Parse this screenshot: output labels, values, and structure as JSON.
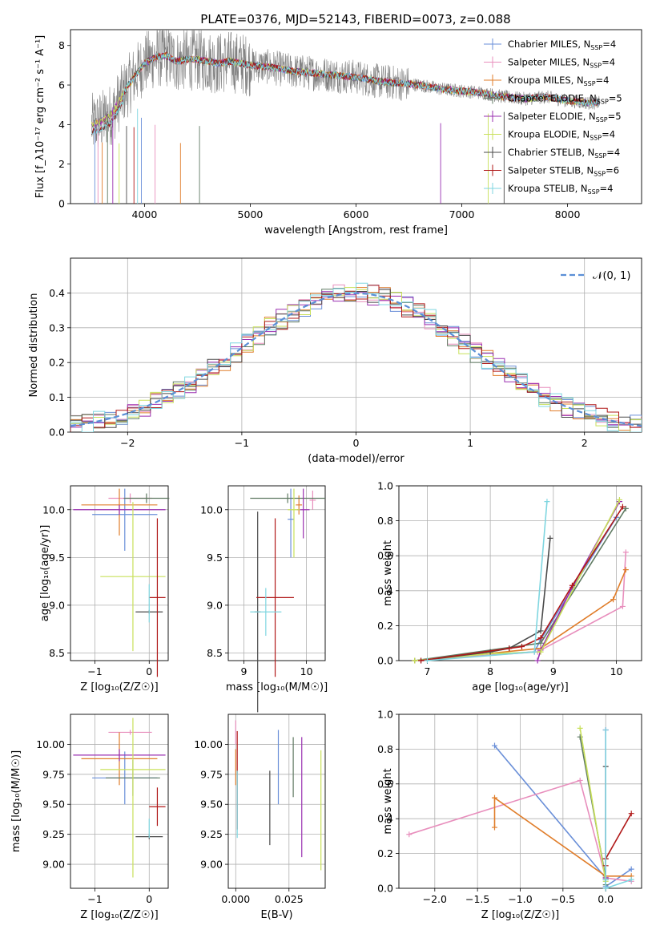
{
  "colors": {
    "Chabrier MILES": "#6a8fd8",
    "Salpeter MILES": "#e88fbd",
    "Kroupa MILES": "#e07d2a",
    "Chabrier ELODIE": "#5f7a62",
    "Salpeter ELODIE": "#9a2fb0",
    "Kroupa ELODIE": "#c8e05a",
    "Chabrier STELIB": "#4a4a4a",
    "Salpeter STELIB": "#b01818",
    "Kroupa STELIB": "#7fd6e0",
    "observed": "#808080",
    "gaussian": "#5b8fd6"
  },
  "chart_data": [
    {
      "id": "spectrum",
      "type": "line",
      "title": "PLATE=0376, MJD=52143, FIBERID=0073, z=0.088",
      "xlabel": "wavelength [Angstrom, rest frame]",
      "ylabel": "Flux [f_λ10⁻¹⁷ erg cm⁻² s⁻¹ A⁻¹]",
      "xlim": [
        3300,
        8700
      ],
      "ylim": [
        0,
        8.8
      ],
      "xticks": [
        4000,
        5000,
        6000,
        7000,
        8000
      ],
      "yticks": [
        0,
        2,
        4,
        6,
        8
      ],
      "legend_position": "top-right",
      "legend": [
        {
          "model": "Chabrier MILES",
          "nssp": "4"
        },
        {
          "model": "Salpeter MILES",
          "nssp": "4"
        },
        {
          "model": "Kroupa MILES",
          "nssp": "4"
        },
        {
          "model": "Chabrier ELODIE",
          "nssp": "5"
        },
        {
          "model": "Salpeter ELODIE",
          "nssp": "5"
        },
        {
          "model": "Kroupa ELODIE",
          "nssp": "4"
        },
        {
          "model": "Chabrier STELIB",
          "nssp": "4"
        },
        {
          "model": "Salpeter STELIB",
          "nssp": "6"
        },
        {
          "model": "Kroupa STELIB",
          "nssp": "4"
        }
      ],
      "model_continuum": {
        "x": [
          3500,
          3550,
          3600,
          3700,
          3800,
          3900,
          4000,
          4100,
          4200,
          4300,
          4400,
          4500,
          4600,
          4700,
          4800,
          4900,
          5000,
          5200,
          5400,
          5600,
          5800,
          6000,
          6200,
          6400,
          6600,
          6800,
          7000,
          7200,
          7400,
          7600,
          7800,
          8000,
          8200,
          8300
        ],
        "y": [
          4.0,
          4.1,
          4.2,
          4.6,
          5.6,
          6.4,
          7.1,
          7.4,
          7.5,
          7.2,
          7.3,
          7.3,
          7.2,
          7.1,
          7.2,
          7.1,
          7.0,
          6.9,
          6.7,
          6.6,
          6.5,
          6.4,
          6.2,
          6.1,
          6.0,
          5.8,
          5.7,
          5.6,
          5.4,
          5.3,
          5.4,
          5.2,
          5.1,
          5.1
        ]
      }
    },
    {
      "id": "residuals",
      "type": "histogram",
      "xlabel": "(data-model)/error",
      "ylabel": "Normed distribution",
      "xlim": [
        -2.5,
        2.5
      ],
      "ylim": [
        0,
        0.5
      ],
      "xticks": [
        -2,
        -1,
        0,
        1,
        2
      ],
      "yticks": [
        0.0,
        0.1,
        0.2,
        0.3,
        0.4
      ],
      "grid": true,
      "legend_position": "top-right",
      "gaussian_label": "𝒩(0, 1)",
      "bin_width": 0.1
    },
    {
      "id": "age-vs-Z",
      "type": "errorbar",
      "xlabel": "Z [log₁₀(Z/Z☉)]",
      "ylabel": "age  [log₁₀(age/yr)]",
      "xlim": [
        -1.45,
        0.35
      ],
      "ylim": [
        8.42,
        10.25
      ],
      "xticks": [
        -1,
        0
      ],
      "yticks": [
        8.5,
        9.0,
        9.5,
        10.0
      ],
      "grid": true,
      "points": [
        {
          "model": "Chabrier MILES",
          "x": -0.45,
          "xerr": 0.6,
          "y": 9.95,
          "yerr": 0.38
        },
        {
          "model": "Salpeter MILES",
          "x": -0.35,
          "xerr": 0.4,
          "y": 10.12,
          "yerr": 0.05
        },
        {
          "model": "Kroupa MILES",
          "x": -0.55,
          "xerr": 0.7,
          "y": 10.05,
          "yerr": 0.32
        },
        {
          "model": "Chabrier ELODIE",
          "x": -0.05,
          "xerr": 0.42,
          "y": 10.12,
          "yerr": 0.05
        },
        {
          "model": "Salpeter ELODIE",
          "x": -0.55,
          "xerr": 0.85,
          "y": 10.0,
          "yerr": 0.05
        },
        {
          "model": "Kroupa ELODIE",
          "x": -0.3,
          "xerr": 0.6,
          "y": 9.3,
          "yerr": 0.78
        },
        {
          "model": "Chabrier STELIB",
          "x": 0.0,
          "xerr": 0.25,
          "y": 8.93,
          "yerr": 0.02
        },
        {
          "model": "Salpeter STELIB",
          "x": 0.15,
          "xerr": 0.15,
          "y": 9.08,
          "yerr": 0.83
        },
        {
          "model": "Kroupa STELIB",
          "x": 0.0,
          "xerr": 0.0,
          "y": 9.02,
          "yerr": 0.2
        }
      ]
    },
    {
      "id": "age-vs-mass",
      "type": "errorbar",
      "xlabel": "mass [log₁₀(M/M☉)]",
      "ylabel": "",
      "xlim": [
        8.75,
        10.3
      ],
      "ylim": [
        8.42,
        10.25
      ],
      "xticks": [
        9,
        10
      ],
      "yticks": [
        8.5,
        9.0,
        9.5,
        10.0
      ],
      "grid": true,
      "points": [
        {
          "model": "Chabrier MILES",
          "x": 9.75,
          "xerr": 0.05,
          "y": 9.9,
          "yerr": 0.4
        },
        {
          "model": "Salpeter MILES",
          "x": 10.1,
          "xerr": 0.05,
          "y": 10.1,
          "yerr": 0.1
        },
        {
          "model": "Kroupa MILES",
          "x": 9.88,
          "xerr": 0.05,
          "y": 10.05,
          "yerr": 0.1
        },
        {
          "model": "Chabrier ELODIE",
          "x": 9.7,
          "xerr": 0.6,
          "y": 10.12,
          "yerr": 0.05
        },
        {
          "model": "Salpeter ELODIE",
          "x": 9.95,
          "xerr": 0.1,
          "y": 10.0,
          "yerr": 0.3
        },
        {
          "model": "Kroupa ELODIE",
          "x": 9.8,
          "xerr": 0.1,
          "y": 10.0,
          "yerr": 0.5
        },
        {
          "model": "Chabrier STELIB",
          "x": 9.22,
          "xerr": 0.05,
          "y": 8.93,
          "yerr": 1.05
        },
        {
          "model": "Salpeter STELIB",
          "x": 9.5,
          "xerr": 0.3,
          "y": 9.08,
          "yerr": 0.83
        },
        {
          "model": "Kroupa STELIB",
          "x": 9.35,
          "xerr": 0.25,
          "y": 8.93,
          "yerr": 0.25
        }
      ]
    },
    {
      "id": "weight-vs-age",
      "type": "line",
      "xlabel": "age  [log₁₀(age/yr)]",
      "ylabel": "mass weight",
      "xlim": [
        6.55,
        10.4
      ],
      "ylim": [
        0,
        1.0
      ],
      "xticks": [
        7,
        8,
        9,
        10
      ],
      "yticks": [
        0.0,
        0.2,
        0.4,
        0.6,
        0.8,
        1.0
      ],
      "grid": true,
      "series": [
        {
          "model": "Chabrier MILES",
          "x": [
            6.8,
            8.7,
            8.8,
            10.0
          ],
          "y": [
            0.0,
            0.05,
            0.12,
            0.82
          ]
        },
        {
          "model": "Salpeter MILES",
          "x": [
            6.8,
            8.75,
            10.1,
            10.15
          ],
          "y": [
            0.0,
            0.05,
            0.31,
            0.62
          ]
        },
        {
          "model": "Kroupa MILES",
          "x": [
            6.8,
            8.8,
            9.95,
            10.15
          ],
          "y": [
            0.0,
            0.07,
            0.35,
            0.52
          ]
        },
        {
          "model": "Chabrier ELODIE",
          "x": [
            6.8,
            8.8,
            10.15
          ],
          "y": [
            0.0,
            0.1,
            0.87
          ]
        },
        {
          "model": "Salpeter ELODIE",
          "x": [
            8.75,
            8.8,
            9.3,
            10.05
          ],
          "y": [
            0.0,
            0.06,
            0.42,
            0.91
          ]
        },
        {
          "model": "Kroupa ELODIE",
          "x": [
            6.8,
            8.0,
            8.8,
            10.05
          ],
          "y": [
            0.0,
            0.04,
            0.05,
            0.92
          ]
        },
        {
          "model": "Chabrier STELIB",
          "x": [
            6.9,
            8.0,
            8.3,
            8.8,
            8.95
          ],
          "y": [
            0.0,
            0.05,
            0.07,
            0.17,
            0.7
          ]
        },
        {
          "model": "Salpeter STELIB",
          "x": [
            6.9,
            8.3,
            8.5,
            8.8,
            9.3,
            10.1
          ],
          "y": [
            0.0,
            0.07,
            0.08,
            0.13,
            0.43,
            0.88
          ]
        },
        {
          "model": "Kroupa STELIB",
          "x": [
            7.0,
            8.7,
            8.9
          ],
          "y": [
            0.0,
            0.05,
            0.91
          ]
        }
      ]
    },
    {
      "id": "mass-vs-Z",
      "type": "errorbar",
      "xlabel": "Z [log₁₀(Z/Z☉)]",
      "ylabel": "mass [log₁₀(M/M☉)]",
      "xlim": [
        -1.45,
        0.35
      ],
      "ylim": [
        8.8,
        10.25
      ],
      "xticks": [
        -1,
        0
      ],
      "yticks": [
        9.0,
        9.25,
        9.5,
        9.75,
        10.0
      ],
      "grid": true,
      "points": [
        {
          "model": "Chabrier MILES",
          "x": -0.45,
          "xerr": 0.6,
          "y": 9.72,
          "yerr": 0.22
        },
        {
          "model": "Salpeter MILES",
          "x": -0.35,
          "xerr": 0.4,
          "y": 10.1,
          "yerr": 0.02
        },
        {
          "model": "Kroupa MILES",
          "x": -0.55,
          "xerr": 0.7,
          "y": 9.88,
          "yerr": 0.22
        },
        {
          "model": "Chabrier ELODIE",
          "x": -0.3,
          "xerr": 0.5,
          "y": 9.72,
          "yerr": 0.15
        },
        {
          "model": "Salpeter ELODIE",
          "x": -0.55,
          "xerr": 0.85,
          "y": 9.91,
          "yerr": 0.05
        },
        {
          "model": "Kroupa ELODIE",
          "x": -0.3,
          "xerr": 0.6,
          "y": 9.79,
          "yerr": 0.9
        },
        {
          "model": "Chabrier STELIB",
          "x": 0.0,
          "xerr": 0.25,
          "y": 9.23,
          "yerr": 0.02
        },
        {
          "model": "Salpeter STELIB",
          "x": 0.15,
          "xerr": 0.15,
          "y": 9.48,
          "yerr": 0.16
        },
        {
          "model": "Kroupa STELIB",
          "x": 0.0,
          "xerr": 0.0,
          "y": 9.3,
          "yerr": 0.08
        }
      ]
    },
    {
      "id": "mass-vs-EBV",
      "type": "errorbar",
      "xlabel": "E(B-V)",
      "ylabel": "",
      "xlim": [
        -0.0035,
        0.042
      ],
      "ylim": [
        8.8,
        10.25
      ],
      "xticks": [
        0.0,
        0.025
      ],
      "ytick_values": [
        9.0,
        9.25,
        9.5,
        9.75,
        10.0
      ],
      "yticks": [
        "9.00",
        "9.25",
        "9.50",
        "9.75",
        "10.00"
      ],
      "xtick_labels": [
        "0.000",
        "0.025"
      ],
      "grid": true,
      "points": [
        {
          "model": "Chabrier MILES",
          "x": 0.02,
          "y": 9.81,
          "yerr": 0.31
        },
        {
          "model": "Salpeter MILES",
          "x": 0.0,
          "y": 10.1,
          "yerr": 0.1
        },
        {
          "model": "Kroupa MILES",
          "x": 0.0,
          "y": 9.81,
          "yerr": 0.15
        },
        {
          "model": "Chabrier ELODIE",
          "x": 0.027,
          "y": 9.81,
          "yerr": 0.25
        },
        {
          "model": "Salpeter ELODIE",
          "x": 0.031,
          "y": 9.56,
          "yerr": 0.5
        },
        {
          "model": "Kroupa ELODIE",
          "x": 0.04,
          "y": 9.45,
          "yerr": 0.5
        },
        {
          "model": "Chabrier STELIB",
          "x": 0.016,
          "y": 9.47,
          "yerr": 0.31
        },
        {
          "model": "Salpeter STELIB",
          "x": 0.0007,
          "y": 9.7,
          "yerr": 0.41
        },
        {
          "model": "Kroupa STELIB",
          "x": 0.0007,
          "y": 9.5,
          "yerr": 0.28
        }
      ]
    },
    {
      "id": "weight-vs-Z",
      "type": "line",
      "xlabel": "Z [log₁₀(Z/Z☉)]",
      "ylabel": "mass weight",
      "xlim": [
        -2.42,
        0.42
      ],
      "ylim": [
        0,
        1.0
      ],
      "xticks": [
        -2.0,
        -1.5,
        -1.0,
        -0.5,
        0.0
      ],
      "yticks": [
        0.0,
        0.2,
        0.4,
        0.6,
        0.8,
        1.0
      ],
      "grid": true,
      "series": [
        {
          "model": "Chabrier MILES",
          "x": [
            -1.3,
            0.0,
            0.0,
            0.3
          ],
          "y": [
            0.82,
            0.06,
            0.01,
            0.11
          ]
        },
        {
          "model": "Salpeter MILES",
          "x": [
            -2.3,
            -0.3,
            0.0,
            0.3
          ],
          "y": [
            0.31,
            0.62,
            0.06,
            0.04
          ]
        },
        {
          "model": "Kroupa MILES",
          "x": [
            -1.3,
            -1.3,
            0.0,
            0.3
          ],
          "y": [
            0.35,
            0.52,
            0.07,
            0.07
          ]
        },
        {
          "model": "Chabrier ELODIE",
          "x": [
            -0.3,
            0.0,
            0.0
          ],
          "y": [
            0.87,
            0.06,
            0.02
          ]
        },
        {
          "model": "Salpeter ELODIE",
          "x": [
            0.0,
            0.0
          ],
          "y": [
            0.91,
            0.06
          ]
        },
        {
          "model": "Kroupa ELODIE",
          "x": [
            -0.3,
            0.0,
            0.0
          ],
          "y": [
            0.92,
            0.04,
            0.05
          ]
        },
        {
          "model": "Chabrier STELIB",
          "x": [
            0.0,
            0.0,
            0.0,
            0.0
          ],
          "y": [
            0.7,
            0.17,
            0.05,
            0.0
          ]
        },
        {
          "model": "Salpeter STELIB",
          "x": [
            0.0,
            0.0,
            0.3
          ],
          "y": [
            0.13,
            0.17,
            0.43
          ]
        },
        {
          "model": "Kroupa STELIB",
          "x": [
            0.0,
            0.0,
            0.0,
            0.3
          ],
          "y": [
            0.91,
            0.05,
            0.0,
            0.05
          ]
        }
      ]
    }
  ]
}
